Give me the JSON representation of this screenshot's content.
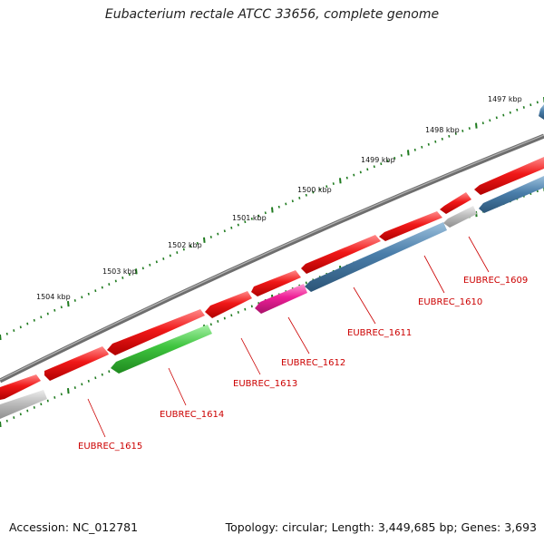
{
  "title": "Eubacterium rectale ATCC 33656, complete genome",
  "footer": {
    "accession": "Accession: NC_012781",
    "stats": "Topology: circular; Length: 3,449,685 bp; Genes: 3,693"
  },
  "colors": {
    "backbone": "#7a7a7a",
    "forward_gene": "#ee1c1c",
    "reverse_gene": "#4a7eaa",
    "pseudo_gene": "#bdbdbd",
    "green_gene": "#3ec43e",
    "magenta_gene": "#ee1e96",
    "tick": "#1e7a1e",
    "label_line": "#cc0000",
    "label_text": "#cc0000"
  },
  "ticks": [
    {
      "pos": 1497,
      "label": "1497 kbp"
    },
    {
      "pos": 1498,
      "label": "1498 kbp"
    },
    {
      "pos": 1499,
      "label": "1499 kbp"
    },
    {
      "pos": 1500,
      "label": "1500 kbp"
    },
    {
      "pos": 1501,
      "label": "1501 kbp"
    },
    {
      "pos": 1502,
      "label": "1502 kbp"
    },
    {
      "pos": 1503,
      "label": "1503 kbp"
    },
    {
      "pos": 1504,
      "label": "1504 kbp"
    }
  ],
  "genes": [
    {
      "name": "EUBREC_1609",
      "type": "pseudo"
    },
    {
      "name": "EUBREC_1610",
      "type": "reverse"
    },
    {
      "name": "EUBREC_1611",
      "type": "reverse"
    },
    {
      "name": "EUBREC_1612",
      "type": "magenta"
    },
    {
      "name": "EUBREC_1613",
      "type": "forward"
    },
    {
      "name": "EUBREC_1614",
      "type": "green"
    },
    {
      "name": "EUBREC_1615",
      "type": "pseudo"
    }
  ]
}
